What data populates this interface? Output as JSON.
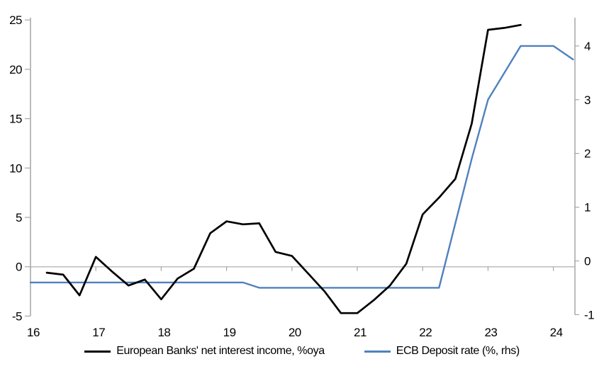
{
  "chart_data": {
    "type": "line",
    "title": "",
    "x_axis": {
      "ticks": [
        16,
        17,
        18,
        19,
        20,
        21,
        22,
        23,
        24
      ],
      "tick_labels": [
        "16",
        "17",
        "18",
        "19",
        "20",
        "21",
        "22",
        "23",
        "24"
      ],
      "range": [
        16,
        24.33
      ],
      "unit": "year"
    },
    "left_y_axis": {
      "ticks": [
        25,
        20,
        15,
        10,
        5,
        0,
        -5
      ],
      "range": [
        -5,
        25.2
      ],
      "zero_line": true
    },
    "right_y_axis": {
      "ticks": [
        4,
        3,
        2,
        1,
        0,
        -1
      ],
      "range": [
        -1,
        4.5
      ]
    },
    "grid": "zero-line-only",
    "legend_position": "bottom",
    "series": [
      {
        "name": "European Banks' net interest income, %oya",
        "axis": "left",
        "color": "#000000",
        "x": [
          16.25,
          16.5,
          16.75,
          17,
          17.25,
          17.5,
          17.75,
          18,
          18.25,
          18.5,
          18.75,
          19,
          19.25,
          19.5,
          19.75,
          20,
          20.25,
          20.5,
          20.75,
          21,
          21.25,
          21.5,
          21.75,
          22,
          22.25,
          22.5,
          22.75,
          23,
          23.25,
          23.5
        ],
        "values": [
          -0.6,
          -0.8,
          -2.9,
          1.0,
          -0.5,
          -1.9,
          -1.3,
          -3.3,
          -1.2,
          -0.2,
          3.4,
          4.6,
          4.3,
          4.4,
          1.5,
          1.1,
          -0.7,
          -2.5,
          -4.7,
          -4.7,
          -3.4,
          -1.9,
          0.3,
          5.3,
          7.0,
          8.9,
          14.5,
          24.0,
          24.2,
          24.5
        ]
      },
      {
        "name": "ECB Deposit rate (%, rhs)",
        "axis": "right",
        "color": "#4F81BD",
        "x": [
          16,
          16.25,
          16.5,
          16.75,
          17,
          17.25,
          17.5,
          17.75,
          18,
          18.25,
          18.5,
          18.75,
          19,
          19.25,
          19.5,
          19.75,
          20,
          20.25,
          20.5,
          20.75,
          21,
          21.25,
          21.5,
          21.75,
          22,
          22.25,
          22.5,
          22.75,
          23,
          23.25,
          23.5,
          23.75,
          24,
          24.3
        ],
        "values": [
          -0.4,
          -0.4,
          -0.4,
          -0.4,
          -0.4,
          -0.4,
          -0.4,
          -0.4,
          -0.4,
          -0.4,
          -0.4,
          -0.4,
          -0.4,
          -0.4,
          -0.5,
          -0.5,
          -0.5,
          -0.5,
          -0.5,
          -0.5,
          -0.5,
          -0.5,
          -0.5,
          -0.5,
          -0.5,
          -0.5,
          0.7,
          1.9,
          3.0,
          3.5,
          4.0,
          4.0,
          4.0,
          3.75
        ]
      }
    ]
  },
  "colors": {
    "axis": "#A6A6A6",
    "zero_line": "#BEBEBE",
    "text": "#000000",
    "background": "#FFFFFF"
  }
}
